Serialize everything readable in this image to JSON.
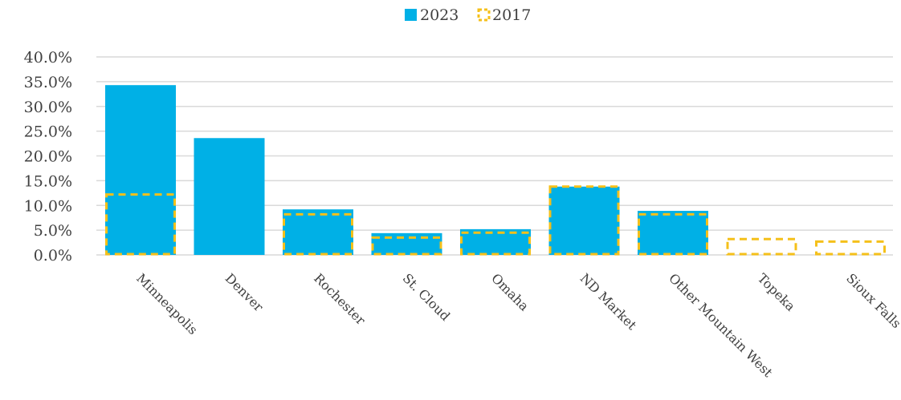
{
  "chart_data": {
    "type": "bar",
    "categories": [
      "Minneapolis",
      "Denver",
      "Rochester",
      "St. Cloud",
      "Omaha",
      "ND Market",
      "Other Mountain West",
      "Topeka",
      "Sioux Falls"
    ],
    "series": [
      {
        "name": "2023",
        "values": [
          34.3,
          23.6,
          9.2,
          4.4,
          5.2,
          13.8,
          8.9,
          0,
          0
        ],
        "style": "filled",
        "color": "#00b0e6"
      },
      {
        "name": "2017",
        "values": [
          12.2,
          0,
          8.2,
          3.5,
          4.5,
          13.8,
          8.2,
          3.2,
          2.7
        ],
        "style": "dashed-outline",
        "color": "#f5c01a"
      }
    ],
    "ylim": [
      0,
      40
    ],
    "yticks": [
      "0.0%",
      "5.0%",
      "10.0%",
      "15.0%",
      "20.0%",
      "25.0%",
      "30.0%",
      "35.0%",
      "40.0%"
    ],
    "ytick_values": [
      0,
      5,
      10,
      15,
      20,
      25,
      30,
      35,
      40
    ],
    "grid": true,
    "legend_position": "top-center",
    "gridline_color": "#d9d9d9",
    "text_color": "#404040"
  }
}
